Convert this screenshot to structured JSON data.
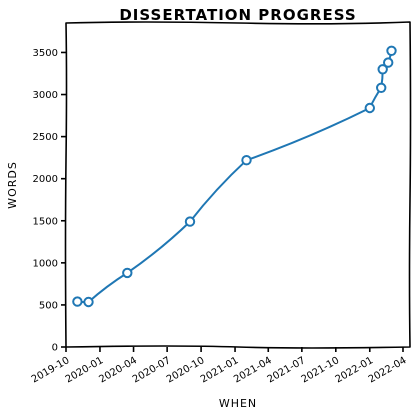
{
  "chart_data": {
    "type": "line",
    "title": "DISSERTATION PROGRESS",
    "xlabel": "WHEN",
    "ylabel": "WORDS",
    "xlim": [
      "2019-10-01",
      "2022-04-20"
    ],
    "ylim": [
      0,
      3850
    ],
    "x_ticks": [
      "2019-10",
      "2020-01",
      "2020-04",
      "2020-07",
      "2020-10",
      "2021-01",
      "2021-04",
      "2021-07",
      "2021-10",
      "2022-01",
      "2022-04"
    ],
    "y_ticks": [
      0,
      500,
      1000,
      1500,
      2000,
      2500,
      3000,
      3500
    ],
    "grid": false,
    "colors": {
      "series": "#1f77b4"
    },
    "series": [
      {
        "x": [
          "2019-11-01",
          "2019-12-01",
          "2020-03-15",
          "2020-09-01",
          "2021-02-01",
          "2022-01-01",
          "2022-02-01",
          "2022-02-05",
          "2022-02-20",
          "2022-03-01"
        ],
        "values": [
          540,
          535,
          880,
          1490,
          2220,
          2840,
          3080,
          3300,
          3380,
          3520
        ]
      }
    ]
  }
}
